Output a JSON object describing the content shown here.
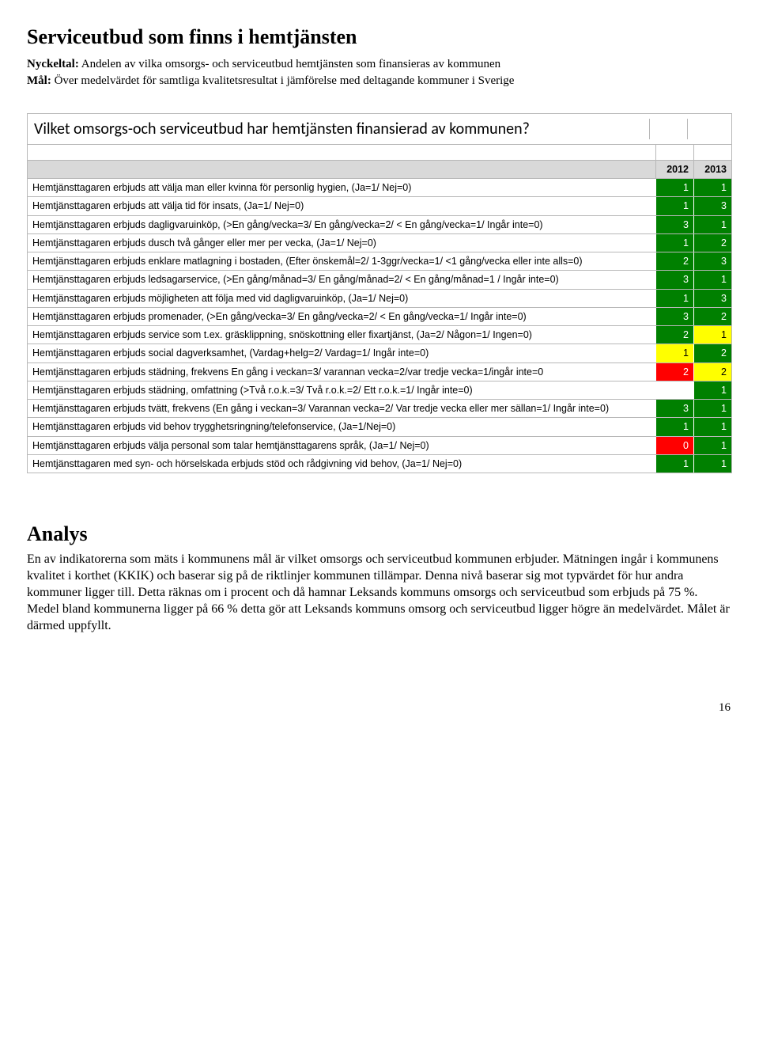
{
  "colors": {
    "green": "#008000",
    "yellow": "#ffff00",
    "red": "#ff0000",
    "white": "#ffffff",
    "black": "#000000"
  },
  "title": "Serviceutbud som finns i hemtjänsten",
  "intro": {
    "nyckeltal_label": "Nyckeltal:",
    "nyckeltal_text": " Andelen av vilka omsorgs- och serviceutbud hemtjänsten som finansieras av kommunen",
    "mal_label": "Mål:",
    "mal_text": " Över medelvärdet för samtliga kvalitetsresultat i jämförelse med deltagande kommuner i Sverige"
  },
  "table": {
    "question": "Vilket omsorgs-och serviceutbud har hemtjänsten finansierad av kommunen?",
    "year1": "2012",
    "year2": "2013",
    "rows": [
      {
        "label": "Hemtjänsttagaren erbjuds att välja man eller kvinna för personlig hygien, (Ja=1/ Nej=0)",
        "v1": "1",
        "c1": "green",
        "v2": "1",
        "c2": "green"
      },
      {
        "label": "Hemtjänsttagaren erbjuds att välja tid för insats, (Ja=1/ Nej=0)",
        "v1": "1",
        "c1": "green",
        "v2": "3",
        "c2": "green"
      },
      {
        "label": "Hemtjänsttagaren erbjuds dagligvaruinköp, (>En gång/vecka=3/ En gång/vecka=2/ < En gång/vecka=1/ Ingår inte=0)",
        "v1": "3",
        "c1": "green",
        "v2": "1",
        "c2": "green"
      },
      {
        "label": "Hemtjänsttagaren erbjuds dusch två gånger eller mer per vecka, (Ja=1/ Nej=0)",
        "v1": "1",
        "c1": "green",
        "v2": "2",
        "c2": "green"
      },
      {
        "label": "Hemtjänsttagaren erbjuds enklare matlagning i bostaden, (Efter önskemål=2/ 1-3ggr/vecka=1/ <1 gång/vecka eller inte alls=0)",
        "v1": "2",
        "c1": "green",
        "v2": "3",
        "c2": "green"
      },
      {
        "label": "Hemtjänsttagaren erbjuds ledsagarservice, (>En gång/månad=3/ En gång/månad=2/ < En gång/månad=1 / Ingår inte=0)",
        "v1": "3",
        "c1": "green",
        "v2": "1",
        "c2": "green"
      },
      {
        "label": "Hemtjänsttagaren erbjuds möjligheten att följa med vid dagligvaruinköp, (Ja=1/ Nej=0)",
        "v1": "1",
        "c1": "green",
        "v2": "3",
        "c2": "green"
      },
      {
        "label": "Hemtjänsttagaren erbjuds promenader, (>En gång/vecka=3/ En gång/vecka=2/ < En gång/vecka=1/ Ingår inte=0)",
        "v1": "3",
        "c1": "green",
        "v2": "2",
        "c2": "green"
      },
      {
        "label": "Hemtjänsttagaren erbjuds service som t.ex. gräsklippning, snöskottning eller fixartjänst, (Ja=2/ Någon=1/ Ingen=0)",
        "v1": "2",
        "c1": "green",
        "v2": "1",
        "c2": "yellow"
      },
      {
        "label": "Hemtjänsttagaren erbjuds social dagverksamhet, (Vardag+helg=2/ Vardag=1/ Ingår inte=0)",
        "v1": "1",
        "c1": "yellow",
        "v2": "2",
        "c2": "green"
      },
      {
        "label": "Hemtjänsttagaren erbjuds städning, frekvens En gång i veckan=3/ varannan vecka=2/var tredje vecka=1/ingår inte=0",
        "v1": "2",
        "c1": "red",
        "v2": "2",
        "c2": "yellow"
      },
      {
        "label": "Hemtjänsttagaren erbjuds städning, omfattning (>Två r.o.k.=3/ Två r.o.k.=2/ Ett r.o.k.=1/ Ingår inte=0)",
        "v1": "",
        "c1": "white",
        "v2": "1",
        "c2": "green"
      },
      {
        "label": "Hemtjänsttagaren erbjuds tvätt, frekvens (En gång i veckan=3/ Varannan vecka=2/ Var tredje vecka eller mer sällan=1/ Ingår inte=0)",
        "v1": "3",
        "c1": "green",
        "v2": "1",
        "c2": "green"
      },
      {
        "label": "Hemtjänsttagaren erbjuds vid behov trygghetsringning/telefonservice, (Ja=1/Nej=0)",
        "v1": "1",
        "c1": "green",
        "v2": "1",
        "c2": "green"
      },
      {
        "label": "Hemtjänsttagaren erbjuds välja personal som talar hemtjänsttagarens språk, (Ja=1/ Nej=0)",
        "v1": "0",
        "c1": "red",
        "v2": "1",
        "c2": "green"
      },
      {
        "label": "Hemtjänsttagaren med syn- och hörselskada erbjuds stöd och rådgivning vid behov, (Ja=1/ Nej=0)",
        "v1": "1",
        "c1": "green",
        "v2": "1",
        "c2": "green"
      }
    ]
  },
  "analys": {
    "heading": "Analys",
    "body": "En av indikatorerna som mäts i kommunens mål är vilket omsorgs och serviceutbud kommunen erbjuder. Mätningen ingår i kommunens kvalitet i korthet (KKIK) och baserar sig på de riktlinjer kommunen tillämpar. Denna nivå baserar sig mot typvärdet för hur andra kommuner ligger till. Detta räknas om i procent och då hamnar Leksands kommuns omsorgs och serviceutbud som erbjuds på 75 %. Medel bland kommunerna ligger på 66 % detta gör att Leksands kommuns omsorg och serviceutbud ligger högre än medelvärdet. Målet är därmed uppfyllt."
  },
  "page_number": "16"
}
